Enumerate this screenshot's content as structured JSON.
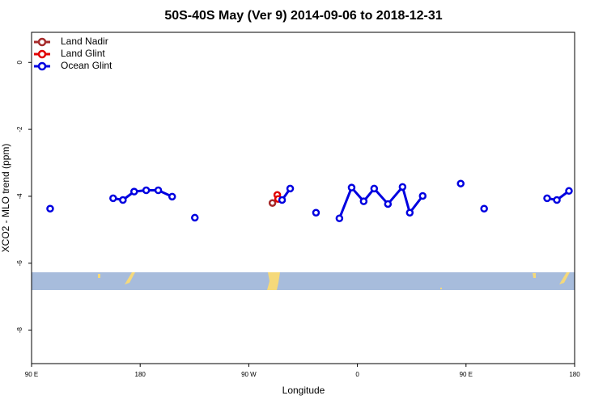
{
  "chart_data": {
    "type": "line",
    "title": "50S-40S May (Ver 9)   2014-09-06 to 2018-12-31",
    "x_label": "Longitude",
    "y_label": "XCO2 - MLO trend (ppm)",
    "xlim": [
      90,
      540
    ],
    "xticks": [
      {
        "value": 90,
        "label": "90 E"
      },
      {
        "value": 180,
        "label": "180"
      },
      {
        "value": 270,
        "label": "90 W"
      },
      {
        "value": 360,
        "label": "0"
      },
      {
        "value": 450,
        "label": "90 E"
      },
      {
        "value": 540,
        "label": "180"
      }
    ],
    "ylim": [
      -9,
      0.9
    ],
    "yticks": [
      0,
      -2,
      -4,
      -6,
      -8
    ],
    "legend": "top-left",
    "series": [
      {
        "name": "Land Nadir",
        "color": "#a52a2a",
        "x": [
          289.6
        ],
        "values": [
          -4.2
        ]
      },
      {
        "name": "Land Glint",
        "color": "#e00000",
        "x": [
          293.6,
          294.3
        ],
        "values": [
          -3.96,
          -4.08
        ]
      },
      {
        "name": "Ocean Glint",
        "color": "#0000e0",
        "x": [
          105.4,
          null,
          157.6,
          165.7,
          175,
          185,
          195,
          206.5,
          null,
          225.3,
          null,
          297.6,
          304.3,
          null,
          325.7,
          null,
          345.1,
          355.2,
          365.2,
          373.9,
          385.3,
          397.4,
          403.4,
          414.1,
          null,
          445.6,
          null,
          465,
          null,
          517.2,
          525.3,
          535.3
        ],
        "values": [
          -4.37,
          null,
          -4.06,
          -4.11,
          -3.86,
          -3.82,
          -3.82,
          -4.01,
          null,
          -4.64,
          null,
          -4.11,
          -3.77,
          null,
          -4.49,
          null,
          -4.66,
          -3.74,
          -4.15,
          -3.77,
          -4.23,
          -3.72,
          -4.49,
          -3.99,
          null,
          -3.62,
          null,
          -4.37,
          null,
          -4.06,
          -4.11,
          -3.84
        ]
      }
    ]
  }
}
